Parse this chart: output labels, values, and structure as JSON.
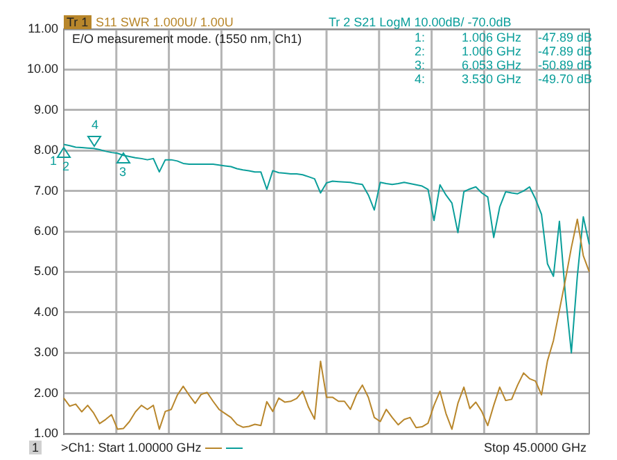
{
  "chart_data": {
    "type": "line",
    "categories": [
      null,
      null,
      null,
      null,
      null,
      null,
      null,
      null,
      null,
      null,
      null,
      null,
      null,
      null,
      null,
      null,
      null,
      null,
      null,
      null,
      null,
      null,
      null,
      null,
      null,
      null,
      null,
      null,
      null,
      null,
      null,
      null,
      null,
      null,
      null,
      null,
      null,
      null,
      null,
      null,
      null,
      null,
      null,
      null,
      null,
      null,
      null,
      null,
      null,
      null,
      null,
      null,
      null,
      null,
      null,
      null,
      null,
      null,
      null,
      null,
      null,
      null,
      null,
      null,
      null,
      null,
      null,
      null,
      null,
      null,
      null,
      null,
      null,
      null,
      null,
      null,
      null,
      null,
      null,
      null,
      null,
      null,
      null,
      null,
      null,
      null,
      null,
      null,
      null
    ],
    "series": [
      {
        "color": "#b8862b",
        "values": [
          1.88,
          1.68,
          1.73,
          1.54,
          1.7,
          1.51,
          1.25,
          1.35,
          1.47,
          1.11,
          1.13,
          1.3,
          1.54,
          1.7,
          1.6,
          1.7,
          1.11,
          1.55,
          1.6,
          1.95,
          2.17,
          1.95,
          1.75,
          1.97,
          2.02,
          1.8,
          1.6,
          1.5,
          1.4,
          1.23,
          1.16,
          1.18,
          1.23,
          1.2,
          1.79,
          1.55,
          1.88,
          1.78,
          1.8,
          1.87,
          2.05,
          1.65,
          1.36,
          2.79,
          1.9,
          1.9,
          1.8,
          1.8,
          1.6,
          1.96,
          2.2,
          1.9,
          1.4,
          1.3,
          1.6,
          1.4,
          1.22,
          1.35,
          1.4,
          1.15,
          1.17,
          1.26,
          1.7,
          2.05,
          1.5,
          1.11,
          1.75,
          2.15,
          1.62,
          1.78,
          1.55,
          1.2,
          1.7,
          2.15,
          1.82,
          1.85,
          2.2,
          2.5,
          2.36,
          2.3,
          1.96,
          2.8,
          3.3,
          4.05,
          4.8,
          5.6,
          6.3,
          5.4,
          5.0
        ]
      },
      {
        "color": "#0a9e9a",
        "values": [
          8.15,
          8.12,
          8.08,
          8.07,
          8.06,
          8.05,
          8.02,
          7.98,
          7.95,
          7.93,
          7.88,
          7.85,
          7.82,
          7.8,
          7.77,
          7.8,
          7.47,
          7.77,
          7.77,
          7.74,
          7.68,
          7.66,
          7.66,
          7.66,
          7.66,
          7.66,
          7.64,
          7.62,
          7.6,
          7.55,
          7.52,
          7.5,
          7.47,
          7.47,
          7.04,
          7.5,
          7.45,
          7.44,
          7.42,
          7.42,
          7.4,
          7.35,
          7.3,
          6.95,
          7.2,
          7.24,
          7.23,
          7.22,
          7.21,
          7.18,
          7.16,
          6.9,
          6.53,
          7.21,
          7.18,
          7.16,
          7.18,
          7.21,
          7.18,
          7.15,
          7.12,
          7.04,
          6.27,
          7.15,
          6.9,
          6.7,
          5.97,
          6.98,
          7.05,
          7.1,
          6.95,
          6.85,
          5.85,
          6.6,
          6.98,
          6.95,
          6.93,
          7.0,
          7.1,
          6.8,
          6.42,
          5.2,
          4.89,
          6.25,
          4.44,
          3.0,
          4.89,
          6.36,
          5.68
        ]
      }
    ],
    "ylim": [
      1,
      11
    ],
    "yticks": [
      {
        "value": 1,
        "label": "1.00"
      },
      {
        "value": 2,
        "label": "2.00"
      },
      {
        "value": 3,
        "label": "3.00"
      },
      {
        "value": 4,
        "label": "4.00"
      },
      {
        "value": 5,
        "label": "5.00"
      },
      {
        "value": 6,
        "label": "6.00"
      },
      {
        "value": 7,
        "label": "7.00"
      },
      {
        "value": 8,
        "label": "8.00"
      },
      {
        "value": 9,
        "label": "9.00"
      },
      {
        "value": 10,
        "label": "10.00"
      },
      {
        "value": 11,
        "label": "11.00"
      }
    ],
    "tick_labels": "y",
    "grid": true,
    "marker": "none",
    "line_style": "solid",
    "annotations": [
      "Tr 1",
      "S11  SWR 1.000U/  1.00U",
      "Tr 2  S21  LogM 10.00dB/  -70.0dB",
      "E/O measurement mode.  (1550 nm, Ch1)",
      "1:",
      "1.006 GHz",
      "-47.89 dB",
      "2:",
      "1.006 GHz",
      "-47.89 dB",
      "3:",
      "6.053 GHz",
      "-50.89 dB",
      "4:",
      "3.530 GHz",
      "-49.70 dB",
      "1",
      ">Ch1: Start  1.00000 GHz",
      "Stop  45.0000 GHz",
      "1",
      "2",
      "3",
      "4"
    ]
  }
}
